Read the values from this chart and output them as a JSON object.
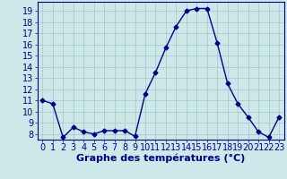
{
  "x": [
    0,
    1,
    2,
    3,
    4,
    5,
    6,
    7,
    8,
    9,
    10,
    11,
    12,
    13,
    14,
    15,
    16,
    17,
    18,
    19,
    20,
    21,
    22,
    23
  ],
  "y": [
    11.0,
    10.7,
    7.7,
    8.6,
    8.2,
    8.0,
    8.3,
    8.3,
    8.3,
    7.8,
    11.6,
    13.5,
    15.7,
    17.6,
    19.0,
    19.2,
    19.2,
    16.1,
    12.5,
    10.7,
    9.5,
    8.2,
    7.7,
    9.5
  ],
  "line_color": "#00008B",
  "marker": "D",
  "marker_size": 2.5,
  "xlim": [
    -0.5,
    23.5
  ],
  "ylim": [
    7.5,
    19.8
  ],
  "yticks": [
    8,
    9,
    10,
    11,
    12,
    13,
    14,
    15,
    16,
    17,
    18,
    19
  ],
  "xticks": [
    0,
    1,
    2,
    3,
    4,
    5,
    6,
    7,
    8,
    9,
    10,
    11,
    12,
    13,
    14,
    15,
    16,
    17,
    18,
    19,
    20,
    21,
    22,
    23
  ],
  "xlabel": "Graphe des températures (°C)",
  "bg_color": "#cce8e8",
  "grid_color": "#aacccc",
  "tick_label_color": "#00008B",
  "axis_color": "#00008B",
  "xlabel_color": "#00008B",
  "xlabel_fontsize": 8,
  "tick_fontsize": 7
}
